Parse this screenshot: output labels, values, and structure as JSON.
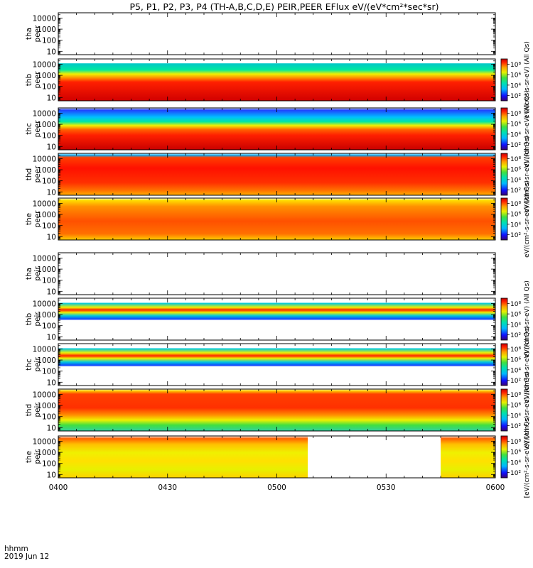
{
  "title": "P5, P1, P2, P3, P4 (TH-A,B,C,D,E) PEIR,PEER EFlux eV/(eV*cm²*sec*sr)",
  "chart_data": {
    "type": "heatmap",
    "x_axis": {
      "ticks": [
        "0400",
        "0430",
        "0500",
        "0530",
        "0600"
      ],
      "label_line1": "hhmm",
      "label_line2": "2019 Jun 12",
      "range": [
        "04:00",
        "06:00"
      ]
    },
    "y_axis": {
      "scale": "log",
      "ticks": [
        "10",
        "100",
        "1000",
        "10000"
      ],
      "range": [
        5,
        30000
      ]
    },
    "colorbar": {
      "scale": "log",
      "ticks": [
        "10²",
        "10⁴",
        "10⁶",
        "10⁸"
      ],
      "range": [
        10,
        1000000000.0
      ]
    },
    "panels": [
      {
        "id": "tha-peer",
        "label1": "tha",
        "label2": "peer",
        "has_data": false,
        "has_colorbar": false
      },
      {
        "id": "thb-peer",
        "label1": "thb",
        "label2": "peer",
        "has_data": true,
        "has_colorbar": true,
        "cb_label": "eV/(cm²-s-sr-eV) (All Qs)"
      },
      {
        "id": "thc-peer",
        "label1": "thc",
        "label2": "peer",
        "has_data": true,
        "has_colorbar": true,
        "cb_label": "eV/(cm²-s-sr-eV) (All Qs)"
      },
      {
        "id": "thd-peer",
        "label1": "thd",
        "label2": "peer",
        "has_data": true,
        "has_colorbar": true,
        "cb_label": "eV/(cm²-s-sr-eV) (All Qs)"
      },
      {
        "id": "the-peer",
        "label1": "the",
        "label2": "peer",
        "has_data": true,
        "has_colorbar": true,
        "cb_label": "eV/(cm²-s-sr-eV) (All Qs)"
      },
      {
        "id": "tha-peir",
        "label1": "tha",
        "label2": "peir",
        "has_data": false,
        "has_colorbar": false
      },
      {
        "id": "thb-peir",
        "label1": "thb",
        "label2": "peir",
        "has_data": true,
        "has_colorbar": true,
        "cb_label": "eV/(cm²-s-sr-eV) (All Qs)"
      },
      {
        "id": "thc-peir",
        "label1": "thc",
        "label2": "peir",
        "has_data": true,
        "has_colorbar": true,
        "cb_label": "eV/(cm²-s-sr-eV) (All Qs)"
      },
      {
        "id": "thd-peir",
        "label1": "thd",
        "label2": "peir",
        "has_data": true,
        "has_colorbar": true,
        "cb_label": "eV/(cm²-s-sr-eV) (All Qs)"
      },
      {
        "id": "the-peir",
        "label1": "the",
        "label2": "peir",
        "has_data": true,
        "has_colorbar": true,
        "cb_label": "[eV/(cm²-s-sr-eV)] (All Qs)"
      }
    ]
  }
}
